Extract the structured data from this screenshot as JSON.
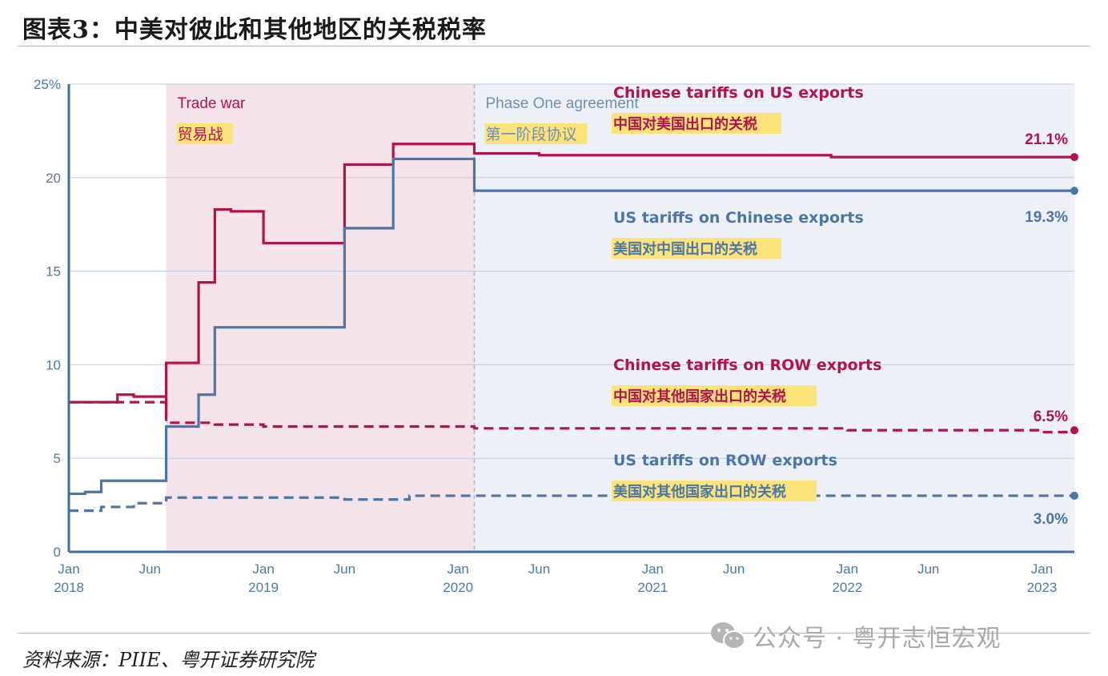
{
  "title": "图表3：中美对彼此和其他地区的关税税率",
  "source": "资料来源：PIIE、粤开证券研究院",
  "watermark": {
    "icon": "wechat-icon",
    "text": "公众号 · 粤开志恒宏观"
  },
  "colors": {
    "us_on_china": "#4a77a8",
    "china_on_us": "#b3124f",
    "trade_war_shade": "#f5e3ea",
    "phase_one_shade": "#edf1f7",
    "highlight": "#fbe37a"
  },
  "chart_data": {
    "type": "line",
    "step": true,
    "x_range": [
      "2018-01",
      "2023-03"
    ],
    "ylim": [
      0,
      25
    ],
    "yticks": [
      "25%",
      "20",
      "15",
      "10",
      "5",
      "0"
    ],
    "xticks": [
      {
        "label": "Jan",
        "year": "2018"
      },
      {
        "label": "Jun",
        "year": ""
      },
      {
        "label": "Jan",
        "year": "2019"
      },
      {
        "label": "Jun",
        "year": ""
      },
      {
        "label": "Jan",
        "year": "2020"
      },
      {
        "label": "Jun",
        "year": ""
      },
      {
        "label": "Jan",
        "year": "2021"
      },
      {
        "label": "Jun",
        "year": ""
      },
      {
        "label": "Jan",
        "year": "2022"
      },
      {
        "label": "Jun",
        "year": ""
      },
      {
        "label": "Jan",
        "year": "2023"
      }
    ],
    "grid": true,
    "periods": [
      {
        "label": "Trade war",
        "label_cn": "贸易战",
        "start": "2018-07",
        "end": "2020-02"
      },
      {
        "label": "Phase One agreement",
        "label_cn": "第一阶段协议",
        "start": "2020-02",
        "end": "2023-03"
      }
    ],
    "series": [
      {
        "name": "Chinese tariffs on US exports",
        "name_cn": "中国对美国出口的关税",
        "color": "#b3124f",
        "dash": false,
        "end_label": "21.1%",
        "points": [
          [
            "2018-01",
            8.0
          ],
          [
            "2018-04",
            8.4
          ],
          [
            "2018-05",
            8.3
          ],
          [
            "2018-07",
            7.2
          ],
          [
            "2018-07",
            10.1
          ],
          [
            "2018-09",
            14.4
          ],
          [
            "2018-10",
            18.3
          ],
          [
            "2018-11",
            18.2
          ],
          [
            "2019-01",
            16.5
          ],
          [
            "2019-06",
            20.7
          ],
          [
            "2019-09",
            21.8
          ],
          [
            "2020-02",
            21.3
          ],
          [
            "2020-06",
            21.2
          ],
          [
            "2021-12",
            21.1
          ],
          [
            "2023-03",
            21.1
          ]
        ]
      },
      {
        "name": "US tariffs on Chinese exports",
        "name_cn": "美国对中国出口的关税",
        "color": "#4a77a8",
        "dash": false,
        "end_label": "19.3%",
        "points": [
          [
            "2018-01",
            3.1
          ],
          [
            "2018-02",
            3.2
          ],
          [
            "2018-03",
            3.8
          ],
          [
            "2018-07",
            6.7
          ],
          [
            "2018-09",
            8.4
          ],
          [
            "2018-10",
            12.0
          ],
          [
            "2019-06",
            17.3
          ],
          [
            "2019-09",
            21.0
          ],
          [
            "2020-02",
            19.3
          ],
          [
            "2023-03",
            19.3
          ]
        ]
      },
      {
        "name": "Chinese tariffs on ROW exports",
        "name_cn": "中国对其他国家出口的关税",
        "color": "#b3124f",
        "dash": true,
        "end_label": "6.5%",
        "points": [
          [
            "2018-01",
            8.0
          ],
          [
            "2018-04",
            8.0
          ],
          [
            "2018-07",
            6.9
          ],
          [
            "2018-10",
            6.8
          ],
          [
            "2019-01",
            6.7
          ],
          [
            "2020-02",
            6.6
          ],
          [
            "2022-01",
            6.5
          ],
          [
            "2023-01",
            6.4
          ],
          [
            "2023-03",
            6.5
          ]
        ]
      },
      {
        "name": "US tariffs on ROW exports",
        "name_cn": "美国对其他国家出口的关税",
        "color": "#4a77a8",
        "dash": true,
        "end_label": "3.0%",
        "points": [
          [
            "2018-01",
            2.2
          ],
          [
            "2018-03",
            2.4
          ],
          [
            "2018-05",
            2.6
          ],
          [
            "2018-07",
            2.9
          ],
          [
            "2019-06",
            2.8
          ],
          [
            "2019-10",
            3.0
          ],
          [
            "2023-03",
            3.0
          ]
        ]
      }
    ]
  }
}
